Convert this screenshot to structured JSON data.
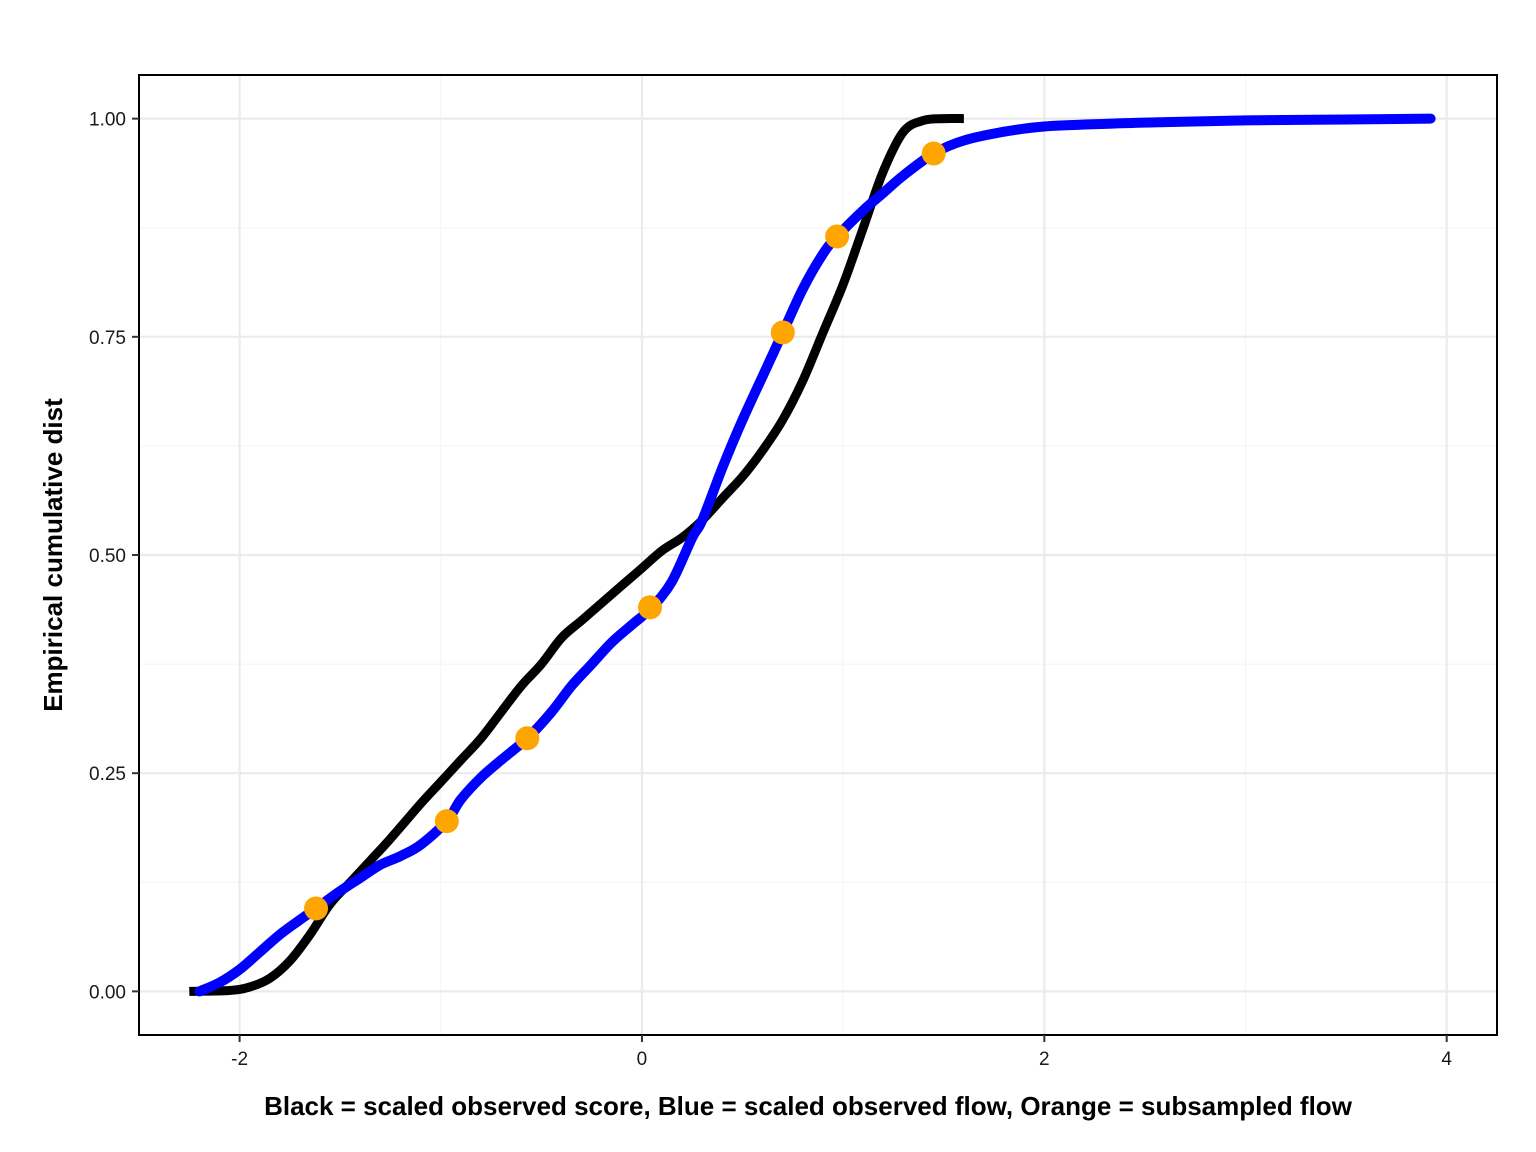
{
  "chart_data": {
    "type": "line",
    "title": "",
    "xlabel": "Black = scaled observed score, Blue = scaled observed flow, Orange = subsampled flow",
    "ylabel": "Empirical cumulative dist",
    "xlim": [
      -2.5,
      4.25
    ],
    "ylim": [
      -0.05,
      1.05
    ],
    "x_ticks": [
      -2,
      0,
      2,
      4
    ],
    "x_tick_labels": [
      "-2",
      "0",
      "2",
      "4"
    ],
    "y_ticks": [
      0,
      0.25,
      0.5,
      0.75,
      1
    ],
    "y_tick_labels": [
      "0.00",
      "0.25",
      "0.50",
      "0.75",
      "1.00"
    ],
    "grid": true,
    "legend": "none",
    "series": [
      {
        "color": "#000000",
        "style": "line",
        "x": [
          -2.25,
          -2.05,
          -1.95,
          -1.85,
          -1.75,
          -1.65,
          -1.55,
          -1.45,
          -1.35,
          -1.25,
          -1.1,
          -1.0,
          -0.9,
          -0.8,
          -0.7,
          -0.6,
          -0.5,
          -0.4,
          -0.3,
          -0.2,
          -0.1,
          0.0,
          0.1,
          0.2,
          0.3,
          0.4,
          0.5,
          0.6,
          0.7,
          0.8,
          0.9,
          1.0,
          1.1,
          1.2,
          1.3,
          1.4,
          1.5,
          1.6
        ],
        "y": [
          0.0,
          0.001,
          0.005,
          0.015,
          0.035,
          0.065,
          0.1,
          0.125,
          0.15,
          0.175,
          0.215,
          0.24,
          0.265,
          0.29,
          0.32,
          0.35,
          0.375,
          0.405,
          0.425,
          0.445,
          0.465,
          0.485,
          0.505,
          0.52,
          0.54,
          0.565,
          0.59,
          0.62,
          0.655,
          0.7,
          0.755,
          0.81,
          0.875,
          0.94,
          0.985,
          0.998,
          1.0,
          1.0
        ]
      },
      {
        "color": "#0000ff",
        "style": "line",
        "x": [
          -2.2,
          -2.1,
          -2.0,
          -1.9,
          -1.8,
          -1.7,
          -1.62,
          -1.5,
          -1.4,
          -1.3,
          -1.2,
          -1.1,
          -0.97,
          -0.9,
          -0.8,
          -0.7,
          -0.57,
          -0.45,
          -0.35,
          -0.25,
          -0.15,
          -0.05,
          0.05,
          0.15,
          0.25,
          0.3,
          0.4,
          0.5,
          0.6,
          0.7,
          0.8,
          0.9,
          0.97,
          1.1,
          1.2,
          1.3,
          1.45,
          1.6,
          1.8,
          2.0,
          2.3,
          2.6,
          3.0,
          3.5,
          3.92
        ],
        "y": [
          0.0,
          0.01,
          0.025,
          0.045,
          0.065,
          0.082,
          0.095,
          0.115,
          0.13,
          0.145,
          0.155,
          0.168,
          0.195,
          0.22,
          0.245,
          0.265,
          0.29,
          0.32,
          0.35,
          0.375,
          0.4,
          0.42,
          0.44,
          0.47,
          0.52,
          0.54,
          0.6,
          0.655,
          0.705,
          0.755,
          0.805,
          0.845,
          0.865,
          0.895,
          0.915,
          0.935,
          0.96,
          0.975,
          0.985,
          0.991,
          0.994,
          0.996,
          0.998,
          0.999,
          1.0
        ]
      },
      {
        "color": "#ffa500",
        "style": "points",
        "x": [
          -1.62,
          -0.97,
          -0.57,
          0.04,
          0.7,
          0.97,
          1.45
        ],
        "y": [
          0.095,
          0.195,
          0.29,
          0.44,
          0.755,
          0.865,
          0.96
        ]
      }
    ]
  }
}
